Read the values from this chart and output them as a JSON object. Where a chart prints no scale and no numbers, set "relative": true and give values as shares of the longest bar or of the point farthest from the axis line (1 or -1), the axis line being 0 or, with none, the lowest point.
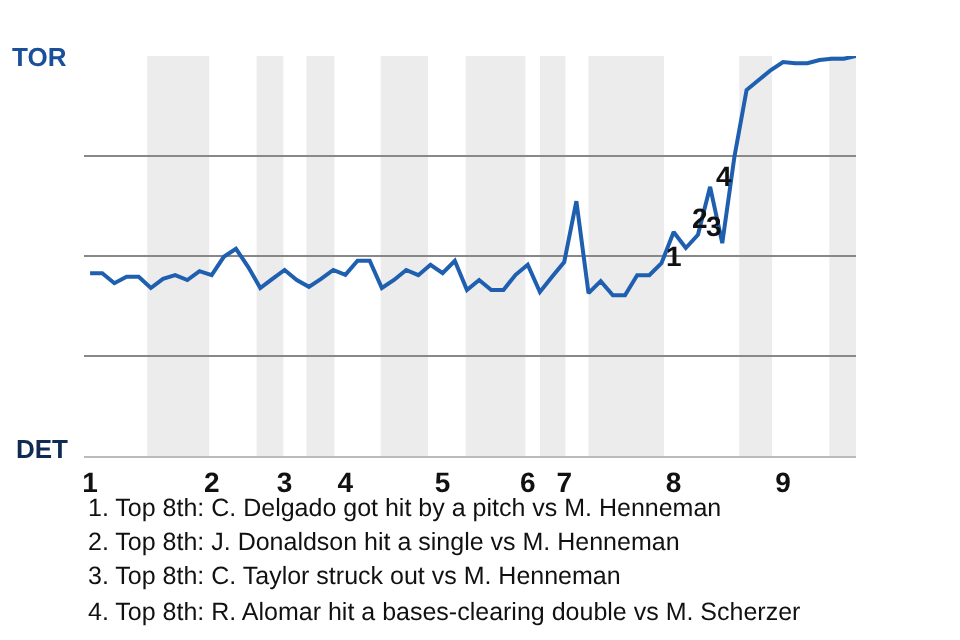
{
  "chart_data": {
    "type": "line",
    "relative": true,
    "categories": [
      "1",
      null,
      null,
      null,
      null,
      null,
      null,
      null,
      null,
      null,
      "2",
      null,
      null,
      null,
      null,
      null,
      "3",
      null,
      null,
      null,
      null,
      "4",
      null,
      null,
      null,
      null,
      null,
      null,
      null,
      "5",
      null,
      null,
      null,
      null,
      null,
      null,
      "6",
      null,
      null,
      "7",
      null,
      null,
      null,
      null,
      null,
      null,
      null,
      null,
      "8",
      null,
      null,
      null,
      null,
      null,
      null,
      null,
      null,
      "9",
      null,
      null,
      null,
      null,
      null,
      null
    ],
    "series": [
      {
        "color": "#1f5fb0",
        "values": [
          0.457,
          0.457,
          0.432,
          0.448,
          0.448,
          0.42,
          0.443,
          0.452,
          0.44,
          0.462,
          0.452,
          0.498,
          0.518,
          0.473,
          0.42,
          0.443,
          0.465,
          0.44,
          0.423,
          0.443,
          0.465,
          0.453,
          0.488,
          0.488,
          0.42,
          0.44,
          0.465,
          0.452,
          0.478,
          0.457,
          0.488,
          0.415,
          0.44,
          0.415,
          0.415,
          0.453,
          0.478,
          0.41,
          0.448,
          0.485,
          0.637,
          0.407,
          0.437,
          0.402,
          0.402,
          0.452,
          0.452,
          0.482,
          0.56,
          0.52,
          0.553,
          0.673,
          0.532,
          0.748,
          0.915,
          0.94,
          0.965,
          0.985,
          0.982,
          0.982,
          0.99,
          0.993,
          0.993,
          1
        ]
      }
    ],
    "grid": "y",
    "annotations": [
      "TOR",
      "DET",
      "1",
      "2",
      "3",
      "4",
      "1. Top 8th: C. Delgado got hit by a pitch vs M. Henneman",
      "2. Top 8th: J. Donaldson hit a single vs M. Henneman",
      "3. Top 8th: C. Taylor struck out vs M. Henneman",
      "4. Top 8th: R. Alomar hit a bases-clearing double vs M. Scherzer"
    ],
    "line_style": "solid",
    "marker": "none"
  }
}
